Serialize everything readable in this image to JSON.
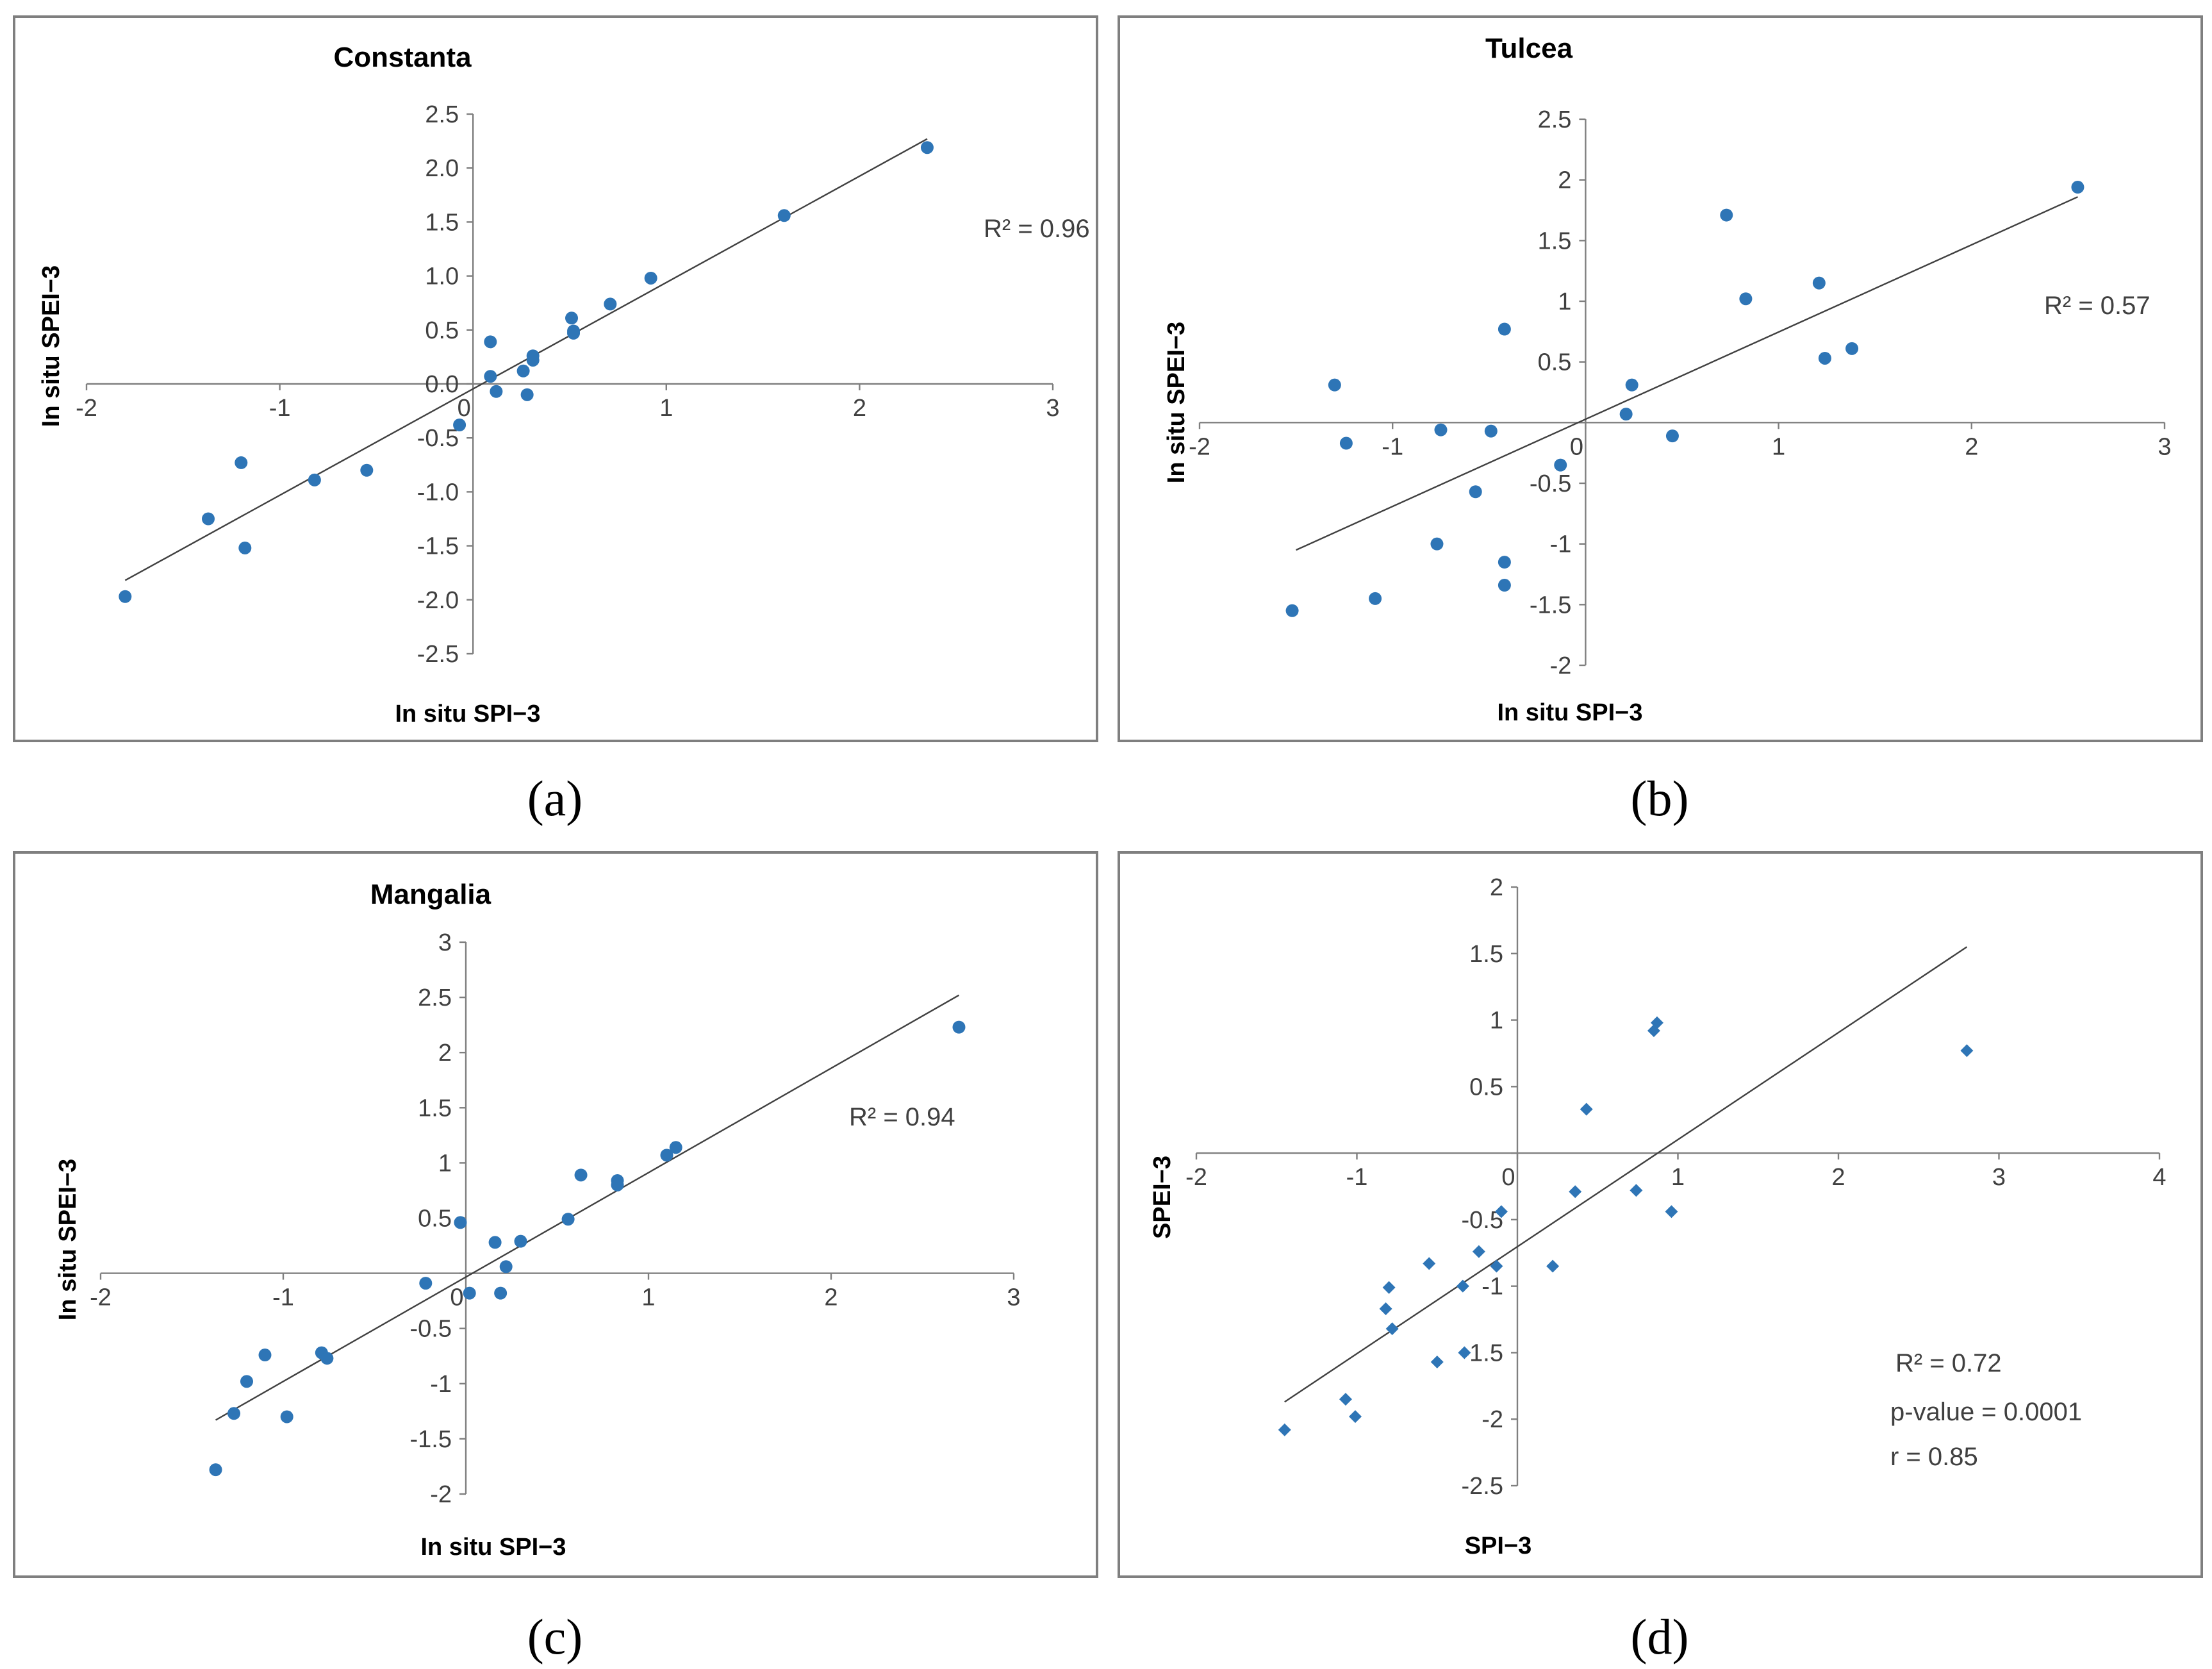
{
  "chart_data": [
    {
      "id": "a",
      "type": "scatter",
      "title": "Constanta",
      "xlabel": "In situ SPI−3",
      "ylabel": "In situ SPEI−3",
      "caption": "(a)",
      "xlim": [
        -2,
        3
      ],
      "ylim": [
        -2.5,
        2.5
      ],
      "xticks": [
        "-2",
        "-1",
        "0",
        "1",
        "2",
        "3"
      ],
      "yticks": [
        "2.5",
        "2.0",
        "1.5",
        "1.0",
        "0.5",
        "0.0",
        "-0.5",
        "-1.0",
        "-1.5",
        "-2.0",
        "-2.5"
      ],
      "marker": "circle",
      "annotations": [
        "R² = 0.96"
      ],
      "trendline": [
        [
          -1.8,
          -1.82
        ],
        [
          2.35,
          2.27
        ]
      ],
      "points": [
        [
          -1.8,
          -1.97
        ],
        [
          -1.37,
          -1.25
        ],
        [
          -1.2,
          -0.73
        ],
        [
          -1.18,
          -1.52
        ],
        [
          -0.82,
          -0.89
        ],
        [
          -0.55,
          -0.8
        ],
        [
          -0.07,
          -0.38
        ],
        [
          0.09,
          0.39
        ],
        [
          0.09,
          0.07
        ],
        [
          0.12,
          -0.07
        ],
        [
          0.26,
          0.12
        ],
        [
          0.28,
          -0.1
        ],
        [
          0.31,
          0.22
        ],
        [
          0.31,
          0.26
        ],
        [
          0.51,
          0.61
        ],
        [
          0.52,
          0.47
        ],
        [
          0.52,
          0.49
        ],
        [
          0.71,
          0.74
        ],
        [
          0.92,
          0.98
        ],
        [
          1.61,
          1.56
        ],
        [
          2.35,
          2.19
        ]
      ]
    },
    {
      "id": "b",
      "type": "scatter",
      "title": "Tulcea",
      "xlabel": "In situ SPI−3",
      "ylabel": "In situ SPEI−3",
      "caption": "(b)",
      "xlim": [
        -2,
        3
      ],
      "ylim": [
        -2,
        2.5
      ],
      "xticks": [
        "-2",
        "-1",
        "0",
        "1",
        "2",
        "3"
      ],
      "yticks": [
        "2.5",
        "2",
        "1.5",
        "1",
        "0.5",
        "0",
        "-0.5",
        "-1",
        "-1.5",
        "-2"
      ],
      "marker": "circle",
      "annotations": [
        "R² = 0.57"
      ],
      "trendline": [
        [
          -1.5,
          -1.05
        ],
        [
          2.55,
          1.86
        ]
      ],
      "points": [
        [
          -1.52,
          -1.55
        ],
        [
          -1.3,
          0.31
        ],
        [
          -1.24,
          -0.17
        ],
        [
          -1.09,
          -1.45
        ],
        [
          -0.77,
          -1.0
        ],
        [
          -0.75,
          -0.06
        ],
        [
          -0.49,
          -0.07
        ],
        [
          -0.57,
          -0.57
        ],
        [
          -0.42,
          0.77
        ],
        [
          -0.42,
          -1.15
        ],
        [
          -0.42,
          -1.34
        ],
        [
          -0.13,
          -0.35
        ],
        [
          0.21,
          0.07
        ],
        [
          0.24,
          0.31
        ],
        [
          0.45,
          -0.11
        ],
        [
          0.73,
          1.71
        ],
        [
          0.83,
          1.02
        ],
        [
          1.21,
          1.15
        ],
        [
          1.24,
          0.53
        ],
        [
          1.38,
          0.61
        ],
        [
          2.55,
          1.94
        ]
      ]
    },
    {
      "id": "c",
      "type": "scatter",
      "title": "Mangalia",
      "xlabel": "In situ SPI−3",
      "ylabel": "In situ SPEI−3",
      "caption": "(c)",
      "xlim": [
        -2,
        3
      ],
      "ylim": [
        -2,
        3
      ],
      "xticks": [
        "-2",
        "-1",
        "0",
        "1",
        "2",
        "3"
      ],
      "yticks": [
        "3",
        "2.5",
        "2",
        "1.5",
        "1",
        "0.5",
        "0",
        "-0.5",
        "-1",
        "-1.5",
        "-2"
      ],
      "marker": "circle",
      "annotations": [
        "R² = 0.94"
      ],
      "trendline": [
        [
          -1.37,
          -1.33
        ],
        [
          2.7,
          2.52
        ]
      ],
      "points": [
        [
          -1.37,
          -1.78
        ],
        [
          -1.27,
          -1.27
        ],
        [
          -1.2,
          -0.98
        ],
        [
          -1.1,
          -0.74
        ],
        [
          -0.98,
          -1.3
        ],
        [
          -0.79,
          -0.72
        ],
        [
          -0.76,
          -0.77
        ],
        [
          -0.22,
          -0.09
        ],
        [
          -0.03,
          0.46
        ],
        [
          0.02,
          -0.18
        ],
        [
          0.16,
          0.28
        ],
        [
          0.19,
          -0.18
        ],
        [
          0.22,
          0.06
        ],
        [
          0.3,
          0.29
        ],
        [
          0.56,
          0.49
        ],
        [
          0.63,
          0.89
        ],
        [
          0.83,
          0.84
        ],
        [
          0.83,
          0.8
        ],
        [
          1.1,
          1.07
        ],
        [
          1.15,
          1.14
        ],
        [
          2.7,
          2.23
        ]
      ]
    },
    {
      "id": "d",
      "type": "scatter",
      "title": "",
      "xlabel": "SPI−3",
      "ylabel": "SPEI−3",
      "caption": "(d)",
      "xlim": [
        -2,
        4
      ],
      "ylim": [
        -2.5,
        2
      ],
      "xticks": [
        "-2",
        "-1",
        "0",
        "1",
        "2",
        "3",
        "4"
      ],
      "yticks": [
        "2",
        "1.5",
        "1",
        "0.5",
        "0",
        "-0.5",
        "-1",
        "-1.5",
        "-2",
        "-2.5"
      ],
      "marker": "diamond",
      "annotations": [
        "R² = 0.72",
        "p-value = 0.0001",
        "r = 0.85"
      ],
      "trendline": [
        [
          -1.45,
          -1.87
        ],
        [
          2.8,
          1.55
        ]
      ],
      "points": [
        [
          -1.45,
          -2.08
        ],
        [
          -1.07,
          -1.85
        ],
        [
          -1.01,
          -1.98
        ],
        [
          -0.82,
          -1.17
        ],
        [
          -0.8,
          -1.01
        ],
        [
          -0.78,
          -1.32
        ],
        [
          -0.55,
          -0.83
        ],
        [
          -0.5,
          -1.57
        ],
        [
          -0.34,
          -1.0
        ],
        [
          -0.33,
          -1.5
        ],
        [
          -0.24,
          -0.74
        ],
        [
          -0.13,
          -0.85
        ],
        [
          -0.1,
          -0.44
        ],
        [
          0.22,
          -0.85
        ],
        [
          0.36,
          -0.29
        ],
        [
          0.43,
          0.33
        ],
        [
          0.74,
          -0.28
        ],
        [
          0.85,
          0.92
        ],
        [
          0.87,
          0.98
        ],
        [
          0.96,
          -0.44
        ],
        [
          2.8,
          0.77
        ]
      ]
    }
  ]
}
